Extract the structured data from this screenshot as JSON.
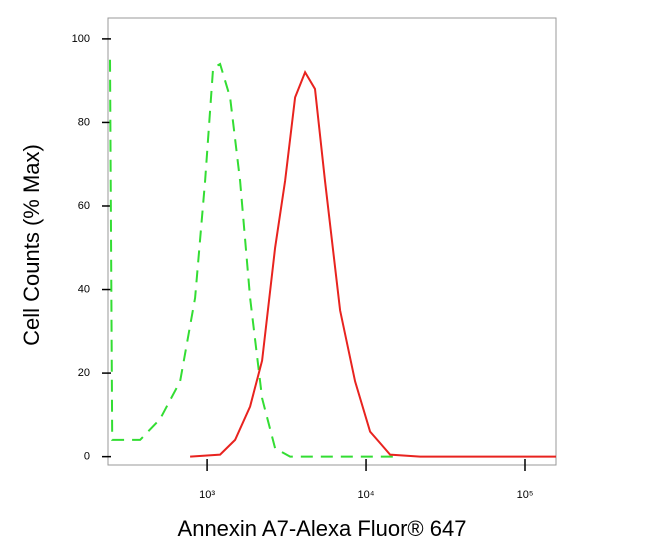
{
  "chart_data": {
    "type": "line",
    "xlabel": "Annexin A7-Alexa Fluor® 647",
    "ylabel": "Cell Counts (% Max)",
    "xscale": "log",
    "xlim": [
      238,
      156700
    ],
    "ylim": [
      -2,
      105
    ],
    "xticks": [
      {
        "value": 1000,
        "label": "10³"
      },
      {
        "value": 10000,
        "label": "10⁴"
      },
      {
        "value": 100000,
        "label": "10⁵"
      }
    ],
    "yticks": [
      0,
      20,
      40,
      60,
      80,
      100
    ],
    "series": [
      {
        "color": "#33dd33",
        "line_style": "dashed",
        "x": [
          245,
          253,
          379,
          506,
          676,
          840,
          971,
          1091,
          1207,
          1395,
          1612,
          1864,
          2218,
          2679,
          3327,
          16370
        ],
        "values": [
          95,
          4,
          4,
          9,
          18,
          38,
          66,
          93,
          94,
          86,
          66,
          38,
          14,
          2,
          0,
          0
        ]
      },
      {
        "color": "#e8231f",
        "line_style": "solid",
        "x": [
          782,
          1207,
          1500,
          1864,
          2218,
          2679,
          3094,
          3576,
          4134,
          4777,
          5521,
          6864,
          8530,
          10600,
          14160,
          21870,
          156700
        ],
        "values": [
          0,
          0.5,
          4,
          12,
          23,
          50,
          66,
          86,
          92,
          88,
          66,
          35,
          18,
          6,
          0.5,
          0,
          0
        ]
      }
    ]
  }
}
